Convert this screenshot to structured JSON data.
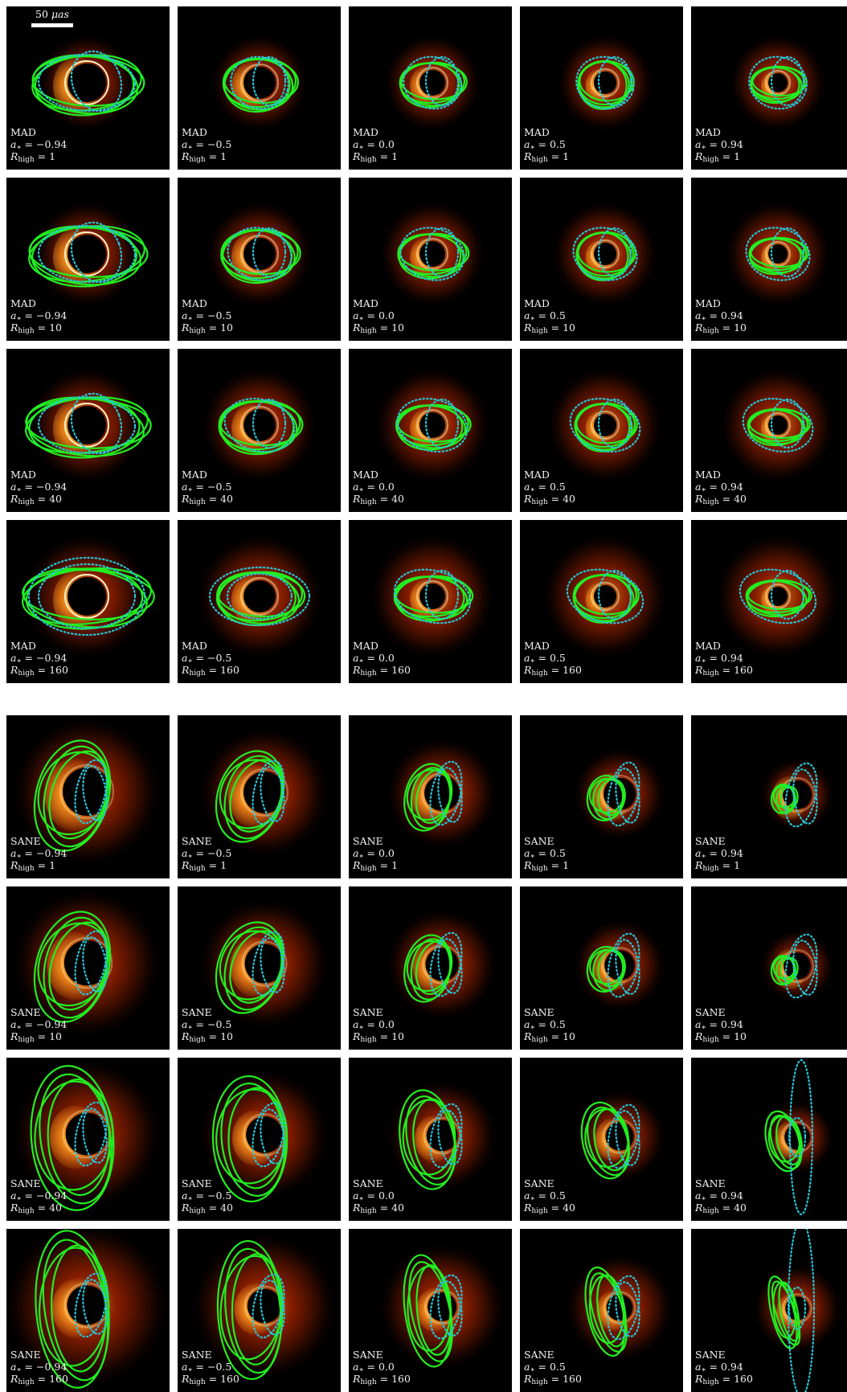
{
  "scale_bar": {
    "value": "50",
    "unit": "μas"
  },
  "colors": {
    "ring_fit": "#22ee22",
    "dotted_fit": "#26c6da",
    "background": "#000000",
    "emission_core": "#fff4c8",
    "emission_mid": "#ff9a1e",
    "emission_outer": "#c22a00",
    "label_text": "#f2f2f2"
  },
  "label_text": {
    "spin_symbol": "a",
    "spin_sub": "∗",
    "rhigh_symbol": "R",
    "rhigh_sub": "high",
    "equals": " = "
  },
  "groups": [
    {
      "model": "MAD",
      "rows": [
        {
          "rhigh": "1",
          "panels": [
            {
              "spin": "−0.94"
            },
            {
              "spin": "−0.5"
            },
            {
              "spin": "0.0"
            },
            {
              "spin": "0.5"
            },
            {
              "spin": "0.94"
            }
          ]
        },
        {
          "rhigh": "10",
          "panels": [
            {
              "spin": "−0.94"
            },
            {
              "spin": "−0.5"
            },
            {
              "spin": "0.0"
            },
            {
              "spin": "0.5"
            },
            {
              "spin": "0.94"
            }
          ]
        },
        {
          "rhigh": "40",
          "panels": [
            {
              "spin": "−0.94"
            },
            {
              "spin": "−0.5"
            },
            {
              "spin": "0.0"
            },
            {
              "spin": "0.5"
            },
            {
              "spin": "0.94"
            }
          ]
        },
        {
          "rhigh": "160",
          "panels": [
            {
              "spin": "−0.94"
            },
            {
              "spin": "−0.5"
            },
            {
              "spin": "0.0"
            },
            {
              "spin": "0.5"
            },
            {
              "spin": "0.94"
            }
          ]
        }
      ]
    },
    {
      "model": "SANE",
      "rows": [
        {
          "rhigh": "1",
          "panels": [
            {
              "spin": "−0.94"
            },
            {
              "spin": "−0.5"
            },
            {
              "spin": "0.0"
            },
            {
              "spin": "0.5"
            },
            {
              "spin": "0.94"
            }
          ]
        },
        {
          "rhigh": "10",
          "panels": [
            {
              "spin": "−0.94"
            },
            {
              "spin": "−0.5"
            },
            {
              "spin": "0.0"
            },
            {
              "spin": "0.5"
            },
            {
              "spin": "0.94"
            }
          ]
        },
        {
          "rhigh": "40",
          "panels": [
            {
              "spin": "−0.94"
            },
            {
              "spin": "−0.5"
            },
            {
              "spin": "0.0"
            },
            {
              "spin": "0.5"
            },
            {
              "spin": "0.94"
            }
          ]
        },
        {
          "rhigh": "160",
          "panels": [
            {
              "spin": "−0.94"
            },
            {
              "spin": "−0.5"
            },
            {
              "spin": "0.0"
            },
            {
              "spin": "0.5"
            },
            {
              "spin": "0.94"
            }
          ]
        }
      ]
    }
  ]
}
